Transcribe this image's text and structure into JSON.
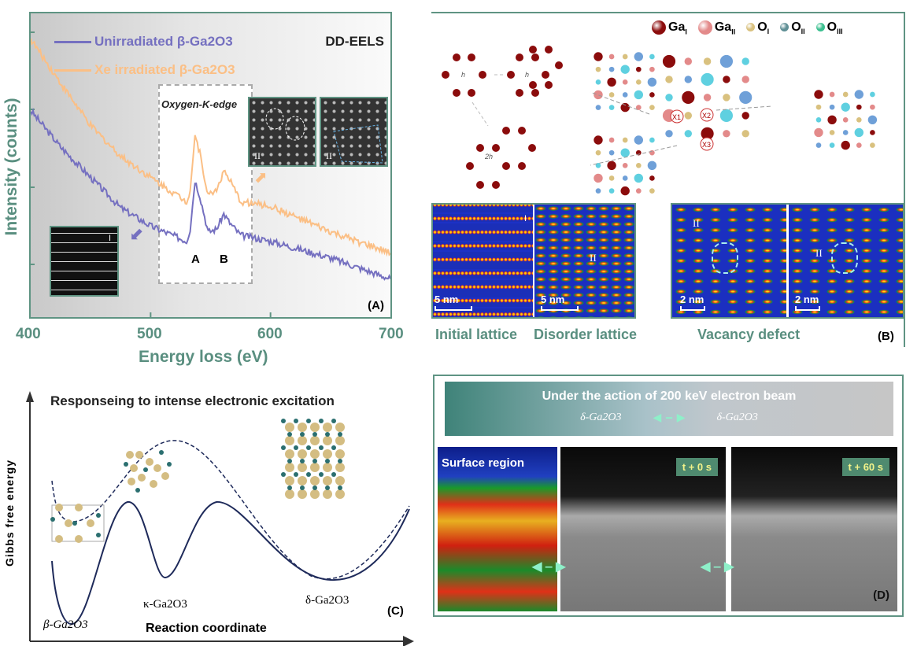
{
  "panel_a": {
    "label": "(A)",
    "corner_label": "DD-EELS",
    "inset_box_title": "Oxygen-K-edge",
    "peak_labels": [
      "A",
      "B"
    ],
    "inset_labels": {
      "unirradiated": "I",
      "irradiated_1": "II",
      "irradiated_2": "II"
    }
  },
  "panel_b": {
    "label": "(B)",
    "legend": [
      {
        "base": "Ga",
        "sub": "I",
        "color": "#8b0c0c"
      },
      {
        "base": "Ga",
        "sub": "II",
        "color": "#e38a8a"
      },
      {
        "base": "O",
        "sub": "I",
        "color": "#d9c17f"
      },
      {
        "base": "O",
        "sub": "II",
        "color": "#5f8f95"
      },
      {
        "base": "O",
        "sub": "III",
        "color": "#3bbf8f"
      }
    ],
    "vectors": [
      "h",
      "h",
      "2h"
    ],
    "sites": [
      "X1",
      "X2",
      "X3"
    ],
    "images": [
      {
        "scale": "5 nm",
        "mark": "I"
      },
      {
        "scale": "5 nm",
        "mark": "II"
      },
      {
        "scale": "2 nm",
        "mark": "II"
      },
      {
        "scale": "2 nm",
        "mark": "II"
      }
    ],
    "captions": [
      "Initial lattice",
      "Disorder lattice",
      "Vacancy defect"
    ]
  },
  "panel_c": {
    "label": "(C)",
    "title": "Responseing to intense electronic excitation",
    "ylabel": "Gibbs free energy",
    "xlabel": "Reaction coordinate",
    "phases": [
      "β-Ga2O3",
      "κ-Ga2O3",
      "δ-Ga2O3"
    ]
  },
  "panel_d": {
    "label": "(D)",
    "banner": "Under the action of 200 keV electron beam",
    "from_phase": "δ-Ga2O3",
    "to_phase": "δ-Ga2O3",
    "surface_label": "Surface region",
    "time_labels": [
      "t + 0 s",
      "t + 60 s"
    ]
  },
  "chart_data": {
    "type": "line",
    "title": "",
    "xlabel": "Energy loss (eV)",
    "ylabel": "Intensity (counts)",
    "xlim": [
      400,
      700
    ],
    "ylim": [
      0,
      100
    ],
    "xticks": [
      400,
      500,
      600,
      700
    ],
    "series": [
      {
        "name": "Unirradiated β-Ga2O3",
        "color": "#7570c0",
        "x": [
          400,
          425,
          450,
          475,
          500,
          530,
          533,
          537,
          541,
          548,
          555,
          561,
          566,
          575,
          600,
          650,
          700
        ],
        "y": [
          68,
          56,
          46,
          36,
          30,
          25,
          29,
          45,
          40,
          28,
          29,
          34,
          31,
          27,
          25,
          19.5,
          12.6
        ]
      },
      {
        "name": "Xe irradiated β-Ga2O3",
        "color": "#fbbf85",
        "x": [
          400,
          425,
          450,
          475,
          500,
          530,
          533,
          537,
          541,
          548,
          555,
          561,
          566,
          575,
          600,
          650,
          700
        ],
        "y": [
          91.5,
          77,
          63,
          53,
          46,
          38,
          42,
          60,
          54,
          40,
          42,
          48,
          45,
          38,
          36.5,
          28,
          21
        ]
      }
    ]
  }
}
